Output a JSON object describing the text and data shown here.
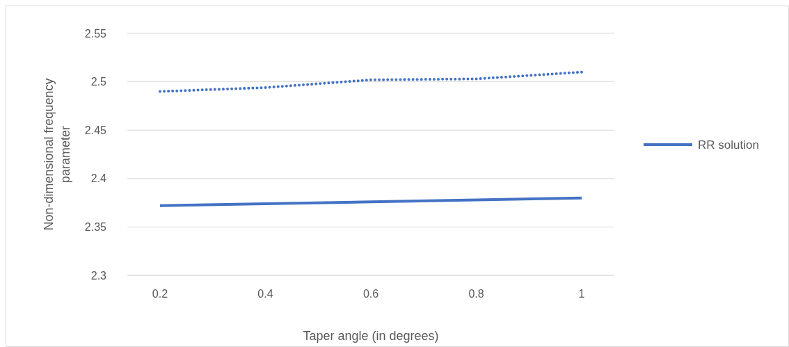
{
  "chart_data": {
    "type": "line",
    "xlabel": "Taper angle (in degrees)",
    "ylabel": "Non-dimensional frequency parameter",
    "categories": [
      "0.2",
      "0.4",
      "0.6",
      "0.8",
      "1"
    ],
    "series": [
      {
        "name": "RR solution",
        "color": "#4472c4",
        "line_style": "solid",
        "values": [
          2.372,
          2.374,
          2.376,
          2.378,
          2.38
        ]
      },
      {
        "color": "#4472c4",
        "line_style": "dotted",
        "values": [
          2.49,
          2.494,
          2.502,
          2.503,
          2.51
        ]
      }
    ],
    "ylim": [
      2.3,
      2.55
    ],
    "yticks": [
      2.3,
      2.35,
      {
        "value": 2.4,
        "label": "2.4"
      },
      2.45,
      {
        "value": 2.5,
        "label": "2.5"
      },
      2.55
    ],
    "grid": "y",
    "legend": "right",
    "marker": "none"
  }
}
